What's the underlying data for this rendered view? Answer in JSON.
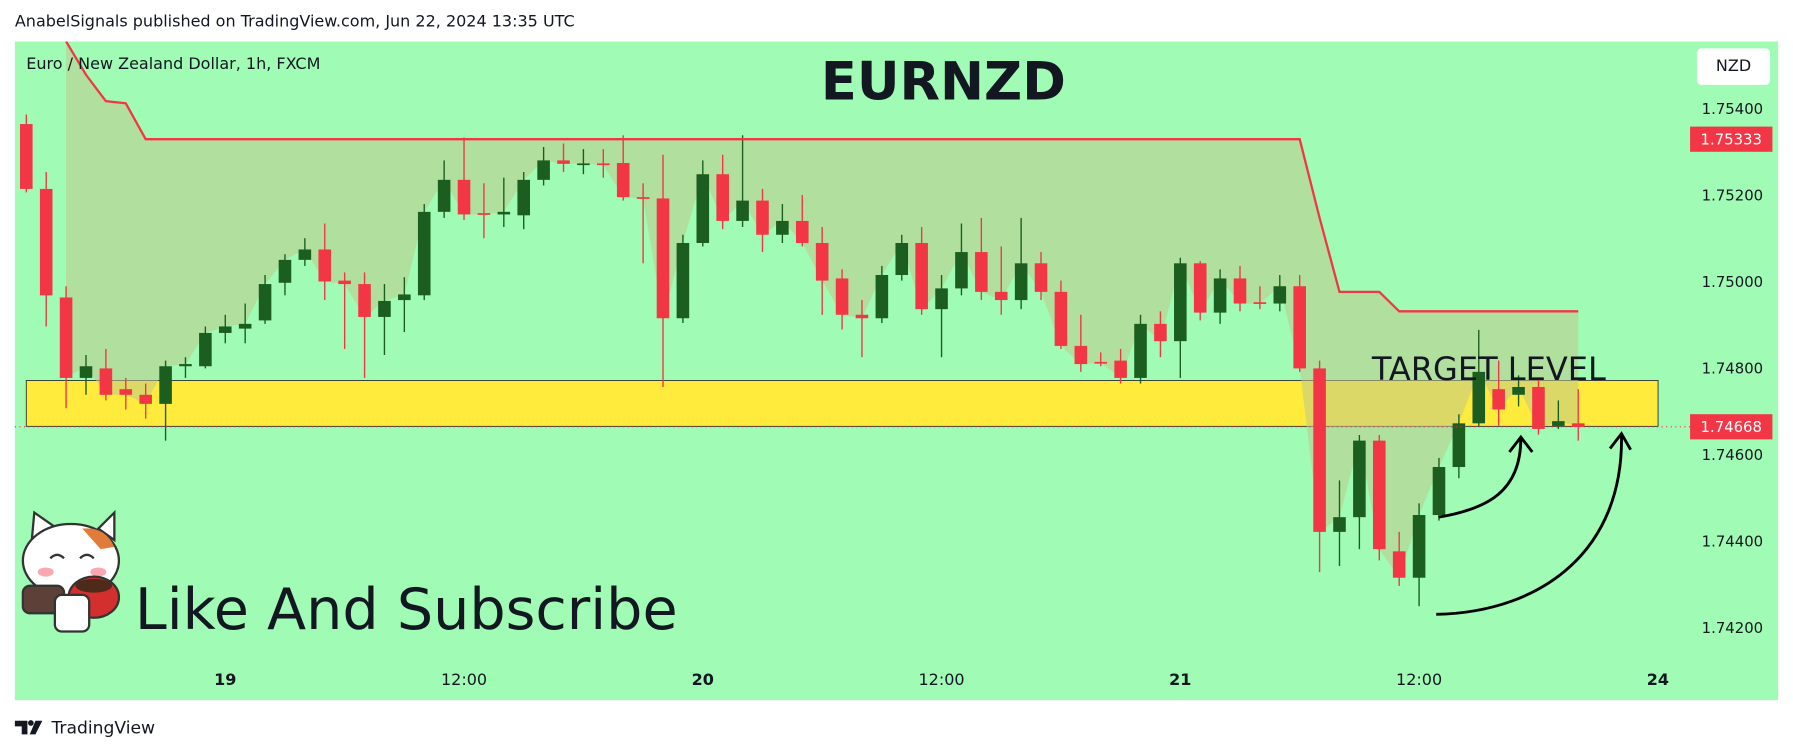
{
  "header": "AnabelSignals published on TradingView.com, Jun 22, 2024 13:35 UTC",
  "footer": "TradingView",
  "chart_data": {
    "type": "candlestick",
    "title": "EURNZD",
    "symbol": "Euro / New Zealand Dollar, 1h, FXCM",
    "currency": "NZD",
    "annotations": [
      "TARGET LEVEL",
      "Like And Subscribe"
    ],
    "up_color": "#1b5e20",
    "down_color": "#f23645",
    "categories": [
      null,
      null,
      null,
      null,
      null,
      null,
      null,
      null,
      null,
      null,
      null,
      null,
      null,
      null,
      null,
      null,
      null,
      null,
      null,
      null,
      null,
      null,
      null,
      null,
      null,
      null,
      null,
      null,
      null,
      null,
      null,
      null,
      null,
      null,
      null,
      null,
      null,
      null,
      null,
      null,
      null,
      null,
      null,
      null,
      null,
      null,
      null,
      null,
      null,
      null,
      null,
      null,
      null,
      null,
      null,
      null,
      null,
      null,
      null,
      null,
      null,
      null,
      null,
      null,
      null,
      null,
      null,
      null,
      null,
      null,
      null,
      null,
      null,
      null,
      null,
      null,
      null,
      null,
      null
    ],
    "open": [
      1.75368,
      1.75218,
      1.74967,
      1.74781,
      1.74803,
      1.74755,
      1.74742,
      1.74721,
      1.74808,
      1.74808,
      1.74885,
      1.74895,
      1.74914,
      1.75001,
      1.75054,
      1.75078,
      1.75006,
      1.74998,
      1.74922,
      1.74961,
      1.74972,
      1.75165,
      1.75239,
      1.75162,
      1.75159,
      1.75157,
      1.75239,
      1.75284,
      1.75276,
      1.75277,
      1.75278,
      1.75199,
      1.75196,
      1.74919,
      1.75093,
      1.75252,
      1.75144,
      1.75191,
      1.75112,
      1.75144,
      1.75093,
      1.75011,
      1.74927,
      1.74919,
      1.75019,
      1.75093,
      1.7494,
      1.74988,
      1.75072,
      1.7498,
      1.74961,
      1.75046,
      1.7498,
      1.74855,
      1.74818,
      1.74821,
      1.74781,
      1.74906,
      1.74866,
      1.75046,
      1.74932,
      1.75011,
      1.74956,
      1.74953,
      1.74993,
      1.74803,
      1.74425,
      1.74459,
      1.74636,
      1.7438,
      1.74319,
      1.74464,
      1.74575,
      1.74676,
      1.74755,
      1.74742,
      1.7476,
      1.7467,
      1.74676
    ],
    "high": [
      1.7539,
      1.75257,
      1.74993,
      1.74834,
      1.74848,
      1.74781,
      1.74768,
      1.74821,
      1.74829,
      1.749,
      1.74927,
      1.74953,
      1.75019,
      1.75067,
      1.75104,
      1.75138,
      1.75025,
      1.75025,
      1.74998,
      1.75014,
      1.75183,
      1.75284,
      1.75337,
      1.75231,
      1.75244,
      1.75257,
      1.75315,
      1.75323,
      1.7531,
      1.7531,
      1.75342,
      1.75231,
      1.75297,
      1.75112,
      1.75284,
      1.75297,
      1.75342,
      1.75218,
      1.75183,
      1.75204,
      1.7513,
      1.75032,
      1.74961,
      1.7504,
      1.75112,
      1.7513,
      1.75019,
      1.75138,
      1.75151,
      1.75085,
      1.75151,
      1.75072,
      1.75006,
      1.74927,
      1.7484,
      1.74848,
      1.74927,
      1.74935,
      1.75059,
      1.75051,
      1.75032,
      1.7504,
      1.74993,
      1.75019,
      1.75019,
      1.74821,
      1.74544,
      1.74649,
      1.74649,
      1.74425,
      1.74491,
      1.74596,
      1.74697,
      1.74892,
      1.74821,
      1.74787,
      1.74781,
      1.74729,
      1.74755
    ],
    "low": [
      1.7521,
      1.749,
      1.74711,
      1.74742,
      1.74729,
      1.74708,
      1.74687,
      1.74636,
      1.74781,
      1.74803,
      1.74861,
      1.74861,
      1.74906,
      1.74972,
      1.7504,
      1.74961,
      1.74848,
      1.74781,
      1.74834,
      1.74887,
      1.74961,
      1.75151,
      1.75146,
      1.75104,
      1.7513,
      1.75125,
      1.75226,
      1.75257,
      1.75252,
      1.75244,
      1.75191,
      1.75046,
      1.7476,
      1.74908,
      1.75085,
      1.75125,
      1.7513,
      1.75072,
      1.75093,
      1.75085,
      1.74927,
      1.74893,
      1.74829,
      1.74908,
      1.75006,
      1.74927,
      1.74829,
      1.74972,
      1.74961,
      1.74927,
      1.7494,
      1.74961,
      1.74848,
      1.74795,
      1.74808,
      1.74768,
      1.74768,
      1.74829,
      1.74781,
      1.74914,
      1.74906,
      1.74935,
      1.7494,
      1.74935,
      1.74795,
      1.74332,
      1.74346,
      1.74385,
      1.74359,
      1.743,
      1.74253,
      1.74451,
      1.74549,
      1.7467,
      1.7467,
      1.74715,
      1.7465,
      1.74663,
      1.74636
    ],
    "close": [
      1.75218,
      1.74972,
      1.74781,
      1.74808,
      1.74742,
      1.74742,
      1.74721,
      1.74808,
      1.74813,
      1.74885,
      1.749,
      1.74906,
      1.74998,
      1.75054,
      1.75078,
      1.75004,
      1.74998,
      1.74922,
      1.74959,
      1.74974,
      1.75165,
      1.75239,
      1.75159,
      1.75159,
      1.75165,
      1.75239,
      1.75284,
      1.75276,
      1.75277,
      1.75273,
      1.75199,
      1.75196,
      1.74919,
      1.75093,
      1.75252,
      1.75144,
      1.75191,
      1.75112,
      1.75144,
      1.75093,
      1.75006,
      1.74927,
      1.74919,
      1.75019,
      1.75093,
      1.7494,
      1.74988,
      1.75072,
      1.7498,
      1.74961,
      1.75046,
      1.7498,
      1.74855,
      1.74813,
      1.74816,
      1.74781,
      1.74906,
      1.74866,
      1.75046,
      1.74932,
      1.75011,
      1.74953,
      1.74953,
      1.74993,
      1.74803,
      1.74425,
      1.74459,
      1.74636,
      1.74385,
      1.74319,
      1.74464,
      1.74575,
      1.74676,
      1.74795,
      1.74708,
      1.7476,
      1.74663,
      1.74681,
      1.74668
    ],
    "stop_line": {
      "color": "#f23645",
      "values": [
        null,
        null,
        1.75559,
        1.75482,
        1.75421,
        1.75416,
        1.75333,
        1.75333,
        1.75333,
        1.75333,
        1.75333,
        1.75333,
        1.75333,
        1.75333,
        1.75333,
        1.75333,
        1.75333,
        1.75333,
        1.75333,
        1.75333,
        1.75333,
        1.75333,
        1.75333,
        1.75333,
        1.75333,
        1.75333,
        1.75333,
        1.75333,
        1.75333,
        1.75333,
        1.75333,
        1.75333,
        1.75333,
        1.75333,
        1.75333,
        1.75333,
        1.75333,
        1.75333,
        1.75333,
        1.75333,
        1.75333,
        1.75333,
        1.75333,
        1.75333,
        1.75333,
        1.75333,
        1.75333,
        1.75333,
        1.75333,
        1.75333,
        1.75333,
        1.75333,
        1.75333,
        1.75333,
        1.75333,
        1.75333,
        1.75333,
        1.75333,
        1.75333,
        1.75333,
        1.75333,
        1.75333,
        1.75333,
        1.75333,
        1.75333,
        1.75151,
        1.7498,
        1.7498,
        1.7498,
        1.74935,
        1.74935,
        1.74935,
        1.74935,
        1.74935,
        1.74935,
        1.74935,
        1.74935,
        1.74935,
        1.74935
      ]
    },
    "zone": {
      "color": "#ffeb3b",
      "range": [
        1.74669,
        1.74775
      ]
    },
    "price_labels": [
      {
        "value": 1.75333,
        "color": "#f23645"
      },
      {
        "value": 1.74668,
        "color": "#f23645"
      }
    ],
    "ylim": [
      1.74036,
      1.75559
    ],
    "yticks": [
      {
        "value": 1.742,
        "label": "1.74200"
      },
      {
        "value": 1.744,
        "label": "1.74400"
      },
      {
        "value": 1.746,
        "label": "1.74600"
      },
      {
        "value": 1.748,
        "label": "1.74800"
      },
      {
        "value": 1.75,
        "label": "1.75000"
      },
      {
        "value": 1.752,
        "label": "1.75200"
      },
      {
        "value": 1.754,
        "label": "1.75400"
      }
    ],
    "xticks": [
      {
        "value": 10,
        "label": "19"
      },
      {
        "value": 22,
        "label": "12:00"
      },
      {
        "value": 34,
        "label": "20"
      },
      {
        "value": 46,
        "label": "12:00"
      },
      {
        "value": 58,
        "label": "21"
      },
      {
        "value": 70,
        "label": "12:00"
      },
      {
        "value": 82,
        "label": "24"
      }
    ]
  }
}
